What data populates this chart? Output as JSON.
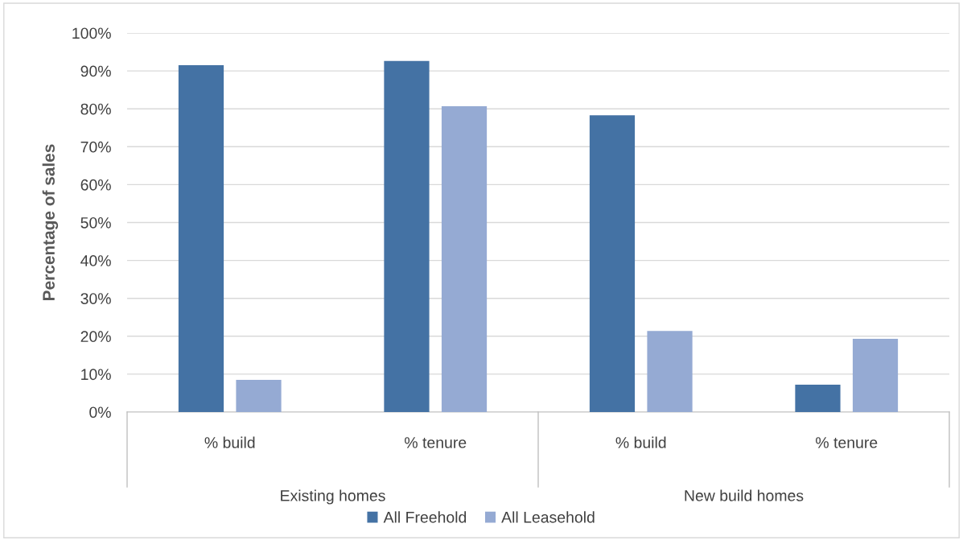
{
  "chart_data": {
    "type": "bar",
    "ylabel": "Percentage of sales",
    "categories": [
      "% build",
      "% tenure",
      "% build",
      "% tenure"
    ],
    "annotations": [
      "Existing homes",
      "New build homes"
    ],
    "series": [
      {
        "name": "All Freehold",
        "color": "#4472a4",
        "values": [
          91.5,
          92.6,
          78.3,
          7.2
        ]
      },
      {
        "name": "All Leasehold",
        "color": "#95aad3",
        "values": [
          8.5,
          80.7,
          21.4,
          19.3
        ]
      }
    ],
    "ylim": [
      0,
      100
    ],
    "yticks": [
      {
        "value": 0,
        "label": "0%"
      },
      {
        "value": 10,
        "label": "10%"
      },
      {
        "value": 20,
        "label": "20%"
      },
      {
        "value": 30,
        "label": "30%"
      },
      {
        "value": 40,
        "label": "40%"
      },
      {
        "value": 50,
        "label": "50%"
      },
      {
        "value": 60,
        "label": "60%"
      },
      {
        "value": 70,
        "label": "70%"
      },
      {
        "value": 80,
        "label": "80%"
      },
      {
        "value": 90,
        "label": "90%"
      },
      {
        "value": 100,
        "label": "100%"
      }
    ],
    "grid": "y",
    "legend": "bottom"
  }
}
